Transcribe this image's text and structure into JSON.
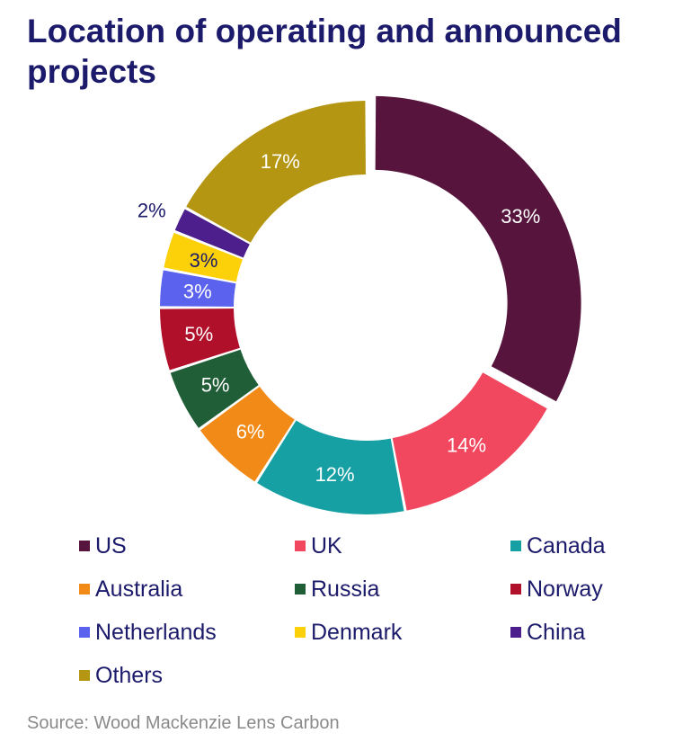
{
  "title": "Location of operating and announced projects",
  "source": "Source: Wood Mackenzie Lens Carbon",
  "chart_data": {
    "type": "pie",
    "donut": true,
    "title": "Location of operating and announced projects",
    "legend_position": "bottom",
    "slices": [
      {
        "name": "US",
        "value": 33,
        "label": "33%",
        "color": "#57143d",
        "label_color": "#ffffff"
      },
      {
        "name": "UK",
        "value": 14,
        "label": "14%",
        "color": "#f1485f",
        "label_color": "#ffffff"
      },
      {
        "name": "Canada",
        "value": 12,
        "label": "12%",
        "color": "#16a0a4",
        "label_color": "#ffffff"
      },
      {
        "name": "Australia",
        "value": 6,
        "label": "6%",
        "color": "#f28a17",
        "label_color": "#ffffff"
      },
      {
        "name": "Russia",
        "value": 5,
        "label": "5%",
        "color": "#1f5e36",
        "label_color": "#ffffff"
      },
      {
        "name": "Norway",
        "value": 5,
        "label": "5%",
        "color": "#b1102a",
        "label_color": "#ffffff"
      },
      {
        "name": "Netherlands",
        "value": 3,
        "label": "3%",
        "color": "#5b63ee",
        "label_color": "#ffffff"
      },
      {
        "name": "Denmark",
        "value": 3,
        "label": "3%",
        "color": "#fdd10a",
        "label_color": "#1c1a6b"
      },
      {
        "name": "China",
        "value": 2,
        "label": "2%",
        "color": "#4c1f8c",
        "label_color": "#1c1a6b"
      },
      {
        "name": "Others",
        "value": 17,
        "label": "17%",
        "color": "#b59612",
        "label_color": "#ffffff"
      }
    ]
  }
}
